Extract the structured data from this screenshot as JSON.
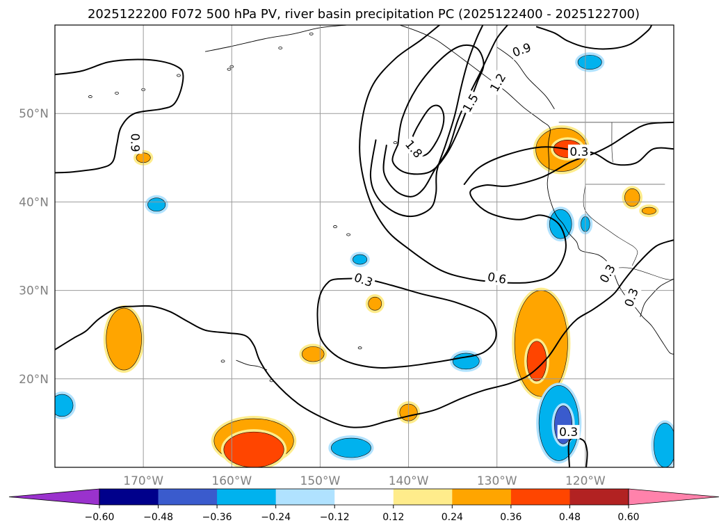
{
  "chart_data": {
    "type": "map-contour",
    "title": "2025122200 F072 500 hPa PV, river basin precipitation PC (2025122400 - 2025122700)",
    "lon_range": [
      -180,
      -110
    ],
    "lat_range": [
      10,
      60
    ],
    "x_ticks": [
      {
        "lon": -170,
        "label": "170°W"
      },
      {
        "lon": -160,
        "label": "160°W"
      },
      {
        "lon": -150,
        "label": "150°W"
      },
      {
        "lon": -140,
        "label": "140°W"
      },
      {
        "lon": -130,
        "label": "130°W"
      },
      {
        "lon": -120,
        "label": "120°W"
      }
    ],
    "y_ticks": [
      {
        "lat": 20,
        "label": "20°N"
      },
      {
        "lat": 30,
        "label": "30°N"
      },
      {
        "lat": 40,
        "label": "40°N"
      },
      {
        "lat": 50,
        "label": "50°N"
      }
    ],
    "grid": true,
    "colorbar": {
      "orientation": "horizontal",
      "extend": "both",
      "levels": [
        -0.6,
        -0.48,
        -0.36,
        -0.24,
        -0.12,
        0.12,
        0.24,
        0.36,
        0.48,
        0.6
      ],
      "tick_labels": [
        "−0.60",
        "−0.48",
        "−0.36",
        "−0.24",
        "−0.12",
        "0.12",
        "0.24",
        "0.36",
        "0.48",
        "0.60"
      ],
      "colors": [
        "#9a32cd",
        "#00008b",
        "#3a5bcd",
        "#00b2ee",
        "#b0e2ff",
        "#ffffff",
        "#ffec8b",
        "#ffa500",
        "#ff4500",
        "#b22222",
        "#ff82ab"
      ]
    },
    "pv_contour_labels": [
      {
        "text": "0.9",
        "lon": -170.9,
        "lat": 46.7,
        "angle": 90
      },
      {
        "text": "0.9",
        "lon": -127.2,
        "lat": 57.2,
        "angle": -20
      },
      {
        "text": "1.8",
        "lon": -139.4,
        "lat": 46.0,
        "angle": 50
      },
      {
        "text": "1.5",
        "lon": -133.0,
        "lat": 51.2,
        "angle": -60
      },
      {
        "text": "1.2",
        "lon": -129.9,
        "lat": 53.5,
        "angle": -60
      },
      {
        "text": "0.3",
        "lon": -120.7,
        "lat": 45.7,
        "angle": 0
      },
      {
        "text": "0.3",
        "lon": -145.1,
        "lat": 31.2,
        "angle": 20
      },
      {
        "text": "0.6",
        "lon": -130.0,
        "lat": 31.4,
        "angle": 10
      },
      {
        "text": "0.3",
        "lon": -117.5,
        "lat": 31.9,
        "angle": -60
      },
      {
        "text": "0.3",
        "lon": -114.8,
        "lat": 29.2,
        "angle": -70
      },
      {
        "text": "0.3",
        "lon": -121.9,
        "lat": 14.0,
        "angle": 0
      }
    ],
    "pv_contours": [
      {
        "level": 0.9,
        "points": [
          [
            -180,
            54.4
          ],
          [
            -177,
            54.8
          ],
          [
            -174,
            55.8
          ],
          [
            -171,
            56.1
          ],
          [
            -168,
            55.9
          ],
          [
            -166,
            55.2
          ],
          [
            -165.5,
            54.3
          ],
          [
            -165.8,
            52.5
          ],
          [
            -166.6,
            51.0
          ],
          [
            -168,
            50.5
          ],
          [
            -171,
            50.0
          ],
          [
            -172.5,
            48.5
          ],
          [
            -173,
            46.5
          ],
          [
            -173.5,
            44.5
          ],
          [
            -175,
            43.8
          ],
          [
            -178,
            43.4
          ],
          [
            -180,
            43.3
          ]
        ]
      },
      {
        "level": 0.9,
        "points": [
          [
            -125.5,
            59.8
          ],
          [
            -123.5,
            59.1
          ],
          [
            -122,
            58.2
          ],
          [
            -120,
            57.5
          ],
          [
            -117.5,
            57.3
          ],
          [
            -115,
            57.8
          ],
          [
            -113,
            59.3
          ],
          [
            -112.5,
            60
          ]
        ]
      },
      {
        "level": 1.8,
        "points": [
          [
            -140,
            46.3
          ],
          [
            -139,
            45.3
          ],
          [
            -137.8,
            45.5
          ],
          [
            -136.5,
            47.5
          ],
          [
            -136,
            49.5
          ],
          [
            -136.5,
            50.8
          ],
          [
            -137.6,
            50.6
          ],
          [
            -139,
            48.5
          ],
          [
            -140,
            46.3
          ]
        ]
      },
      {
        "level": 1.5,
        "points": [
          [
            -141.2,
            46.5
          ],
          [
            -141.8,
            44.6
          ],
          [
            -140.3,
            43.3
          ],
          [
            -137.6,
            43.4
          ],
          [
            -135.7,
            45.4
          ],
          [
            -134.3,
            48.2
          ],
          [
            -133.2,
            51.0
          ],
          [
            -132.2,
            53.6
          ],
          [
            -131.5,
            55.6
          ],
          [
            -132.3,
            57.4
          ],
          [
            -134.2,
            57.6
          ],
          [
            -136.5,
            56.0
          ],
          [
            -139,
            53.0
          ],
          [
            -140.7,
            49.5
          ],
          [
            -141.2,
            46.5
          ]
        ]
      },
      {
        "level": 1.2,
        "points": [
          [
            -142.5,
            46.4
          ],
          [
            -142.8,
            43.4
          ],
          [
            -141.5,
            41.3
          ],
          [
            -139.7,
            40.6
          ],
          [
            -138.3,
            41.5
          ],
          [
            -137,
            43.7
          ],
          [
            -135.5,
            46.0
          ],
          [
            -134.4,
            49.3
          ],
          [
            -133.2,
            52.0
          ],
          [
            -131.9,
            54.6
          ],
          [
            -131,
            56.5
          ],
          [
            -130,
            58.5
          ],
          [
            -128.8,
            60
          ]
        ]
      },
      {
        "level": 0.9,
        "points": [
          [
            -143.7,
            47.0
          ],
          [
            -144.3,
            43.0
          ],
          [
            -143.5,
            40.5
          ],
          [
            -141.5,
            38.8
          ],
          [
            -139.4,
            38.4
          ],
          [
            -137.5,
            39.3
          ],
          [
            -136.9,
            41.0
          ],
          [
            -136.8,
            43.5
          ],
          [
            -135.8,
            46.5
          ],
          [
            -134.8,
            49.7
          ],
          [
            -134.0,
            53.2
          ],
          [
            -133.2,
            56.1
          ],
          [
            -132.3,
            58.5
          ],
          [
            -131.6,
            60
          ]
        ]
      },
      {
        "level": 0.6,
        "points": [
          [
            -136.5,
            60
          ],
          [
            -138.6,
            58.3
          ],
          [
            -141.5,
            56.2
          ],
          [
            -144,
            53.3
          ],
          [
            -145.2,
            49.6
          ],
          [
            -145.5,
            45.2
          ],
          [
            -144.5,
            40.5
          ],
          [
            -142.6,
            37.0
          ],
          [
            -140,
            34.7
          ],
          [
            -136.4,
            32.3
          ],
          [
            -133,
            31.3
          ],
          [
            -129.5,
            30.9
          ],
          [
            -126.5,
            30.9
          ],
          [
            -124.2,
            31.5
          ],
          [
            -122.8,
            33.0
          ],
          [
            -122.2,
            35.2
          ],
          [
            -123.0,
            37.5
          ],
          [
            -125.0,
            38.5
          ],
          [
            -127.5,
            38.0
          ],
          [
            -130.5,
            38.6
          ],
          [
            -132.3,
            39.8
          ],
          [
            -133.0,
            41.2
          ],
          [
            -131.3,
            41.9
          ],
          [
            -128.7,
            41.8
          ],
          [
            -124.9,
            42.8
          ],
          [
            -121.7,
            44.5
          ],
          [
            -119.0,
            45.5
          ],
          [
            -117.0,
            46.5
          ],
          [
            -115.0,
            47.8
          ],
          [
            -113.0,
            48.8
          ],
          [
            -110,
            49.0
          ]
        ]
      },
      {
        "level": 0.3,
        "points": [
          [
            -133.7,
            42.0
          ],
          [
            -132.0,
            43.9
          ],
          [
            -129.0,
            45.3
          ],
          [
            -125.0,
            46.2
          ],
          [
            -121.5,
            45.9
          ],
          [
            -119.0,
            45.5
          ],
          [
            -116.8,
            44.3
          ],
          [
            -114.3,
            44.4
          ],
          [
            -112.3,
            46.0
          ],
          [
            -110,
            46.0
          ]
        ]
      },
      {
        "level": 0.3,
        "points": [
          [
            -110,
            35.7
          ],
          [
            -112,
            35.0
          ],
          [
            -114,
            33.1
          ],
          [
            -115.5,
            31.3
          ],
          [
            -116.6,
            29.8
          ],
          [
            -117.5,
            29.0
          ],
          [
            -119.2,
            27.8
          ],
          [
            -121.0,
            26.7
          ],
          [
            -122.5,
            25.0
          ],
          [
            -124.2,
            22.5
          ],
          [
            -126.3,
            20.5
          ],
          [
            -128.5,
            19.5
          ],
          [
            -131.5,
            18.7
          ],
          [
            -134,
            17.8
          ],
          [
            -137,
            16.5
          ],
          [
            -140,
            15.8
          ],
          [
            -142.5,
            15.2
          ],
          [
            -144.7,
            14.6
          ],
          [
            -147,
            14.6
          ],
          [
            -149.5,
            15.5
          ],
          [
            -152.5,
            17.2
          ],
          [
            -155.3,
            19.8
          ],
          [
            -156.8,
            22.0
          ],
          [
            -157.5,
            23.8
          ],
          [
            -158.5,
            24.9
          ],
          [
            -160.5,
            25.2
          ],
          [
            -163,
            25.5
          ],
          [
            -165,
            26.5
          ],
          [
            -167,
            27.6
          ],
          [
            -169,
            28.2
          ],
          [
            -171,
            28.2
          ],
          [
            -173,
            28.0
          ],
          [
            -175,
            26.8
          ],
          [
            -176.5,
            25.4
          ],
          [
            -177.9,
            24.6
          ],
          [
            -180,
            23.3
          ]
        ]
      },
      {
        "level": 0.3,
        "points": [
          [
            -148,
            31.3
          ],
          [
            -145,
            31.3
          ],
          [
            -142,
            30.6
          ],
          [
            -138.5,
            29.6
          ],
          [
            -134.5,
            28.6
          ],
          [
            -131.0,
            27.0
          ],
          [
            -130.1,
            24.8
          ],
          [
            -131.5,
            23.0
          ],
          [
            -134.5,
            22.3
          ],
          [
            -137.5,
            21.8
          ],
          [
            -140.5,
            21.4
          ],
          [
            -144.0,
            21.3
          ],
          [
            -147.5,
            22.2
          ],
          [
            -149.8,
            24.3
          ],
          [
            -150.3,
            27.0
          ],
          [
            -150.0,
            29.5
          ],
          [
            -149.0,
            31.0
          ],
          [
            -148,
            31.3
          ]
        ]
      },
      {
        "level": 0.3,
        "points": [
          [
            -121.8,
            10
          ],
          [
            -121.8,
            13.0
          ],
          [
            -120.3,
            13.1
          ],
          [
            -119.8,
            11.8
          ],
          [
            -119.9,
            10
          ]
        ]
      }
    ],
    "precip_anomaly_regions": [
      {
        "category": "0.24 to 0.36",
        "center": [
          -122.7,
          45.9
        ],
        "extent": [
          -125.5,
          -119.7,
          43.2,
          48.1
        ]
      },
      {
        "category": "0.36 to 0.48",
        "center": [
          -122.0,
          46.0
        ],
        "extent": [
          -123.5,
          -120.3,
          45.0,
          47.0
        ]
      },
      {
        "category": "-0.36 to -0.24",
        "center": [
          -122.8,
          37.5
        ],
        "extent": [
          -124.0,
          -121.5,
          35.5,
          38.8
        ]
      },
      {
        "category": "0.24 to 0.36",
        "center": [
          -125.0,
          24.0
        ],
        "extent": [
          -127.5,
          -121.5,
          19.0,
          31.0
        ]
      },
      {
        "category": "0.36 to 0.48",
        "center": [
          -125.5,
          22.0
        ],
        "extent": [
          -126.5,
          -124.3,
          20.0,
          24.5
        ]
      },
      {
        "category": "-0.36 to -0.24",
        "center": [
          -123.0,
          15.0
        ],
        "extent": [
          -125.0,
          -120.5,
          10.0,
          18.5
        ]
      },
      {
        "category": "-0.48 to -0.36",
        "center": [
          -122.5,
          14.8
        ],
        "extent": [
          -123.5,
          -121.5,
          12.7,
          17.0
        ]
      },
      {
        "category": "0.24 to 0.36",
        "center": [
          -172.2,
          24.5
        ],
        "extent": [
          -174.0,
          -170.0,
          22.0,
          29.0
        ]
      },
      {
        "category": "0.24 to 0.36",
        "center": [
          -157.5,
          13.0
        ],
        "extent": [
          -162.0,
          -153.0,
          10.0,
          15.0
        ]
      },
      {
        "category": "0.36 to 0.48",
        "center": [
          -157.5,
          12.0
        ],
        "extent": [
          -160.8,
          -154.0,
          10.0,
          14.0
        ]
      },
      {
        "category": "-0.36 to -0.24",
        "center": [
          -179.2,
          17.0
        ],
        "extent": [
          -180.0,
          -177.5,
          15.5,
          18.0
        ]
      },
      {
        "category": "-0.36 to -0.24",
        "center": [
          -111.0,
          12.5
        ],
        "extent": [
          -112.5,
          -110.0,
          10.0,
          15.0
        ]
      },
      {
        "category": "-0.36 to -0.24",
        "center": [
          -146.5,
          12.2
        ],
        "extent": [
          -148.5,
          -144.0,
          11.0,
          13.2
        ]
      },
      {
        "category": "-0.36 to -0.24",
        "center": [
          -133.5,
          22.0
        ],
        "extent": [
          -135.0,
          -132.0,
          21.0,
          22.8
        ]
      },
      {
        "category": "0.24 to 0.36",
        "center": [
          -150.8,
          22.8
        ],
        "extent": [
          -152.0,
          -149.5,
          22.0,
          23.7
        ]
      },
      {
        "category": "0.24 to 0.36",
        "center": [
          -140.0,
          16.2
        ],
        "extent": [
          -141.0,
          -139.0,
          15.3,
          17.2
        ]
      },
      {
        "category": "0.24 to 0.36",
        "center": [
          -143.8,
          28.5
        ],
        "extent": [
          -144.5,
          -143.0,
          27.8,
          29.3
        ]
      },
      {
        "category": "-0.36 to -0.24",
        "center": [
          -168.5,
          39.7
        ],
        "extent": [
          -169.5,
          -167.5,
          39.0,
          40.5
        ]
      },
      {
        "category": "0.24 to 0.36",
        "center": [
          -170.0,
          45.0
        ],
        "extent": [
          -170.8,
          -169.2,
          44.5,
          45.6
        ]
      },
      {
        "category": "-0.36 to -0.24",
        "center": [
          -145.5,
          33.5
        ],
        "extent": [
          -146.3,
          -144.7,
          33.0,
          34.1
        ]
      },
      {
        "category": "-0.36 to -0.24",
        "center": [
          -119.5,
          55.8
        ],
        "extent": [
          -120.7,
          -118.0,
          55.0,
          56.6
        ]
      },
      {
        "category": "0.24 to 0.36",
        "center": [
          -114.7,
          40.5
        ],
        "extent": [
          -115.5,
          -113.8,
          39.5,
          41.5
        ]
      },
      {
        "category": "0.24 to 0.36",
        "center": [
          -112.8,
          39.0
        ],
        "extent": [
          -113.6,
          -112.0,
          38.6,
          39.4
        ]
      },
      {
        "category": "-0.36 to -0.24",
        "center": [
          -120.0,
          37.5
        ],
        "extent": [
          -120.5,
          -119.5,
          36.5,
          38.2
        ]
      }
    ]
  }
}
